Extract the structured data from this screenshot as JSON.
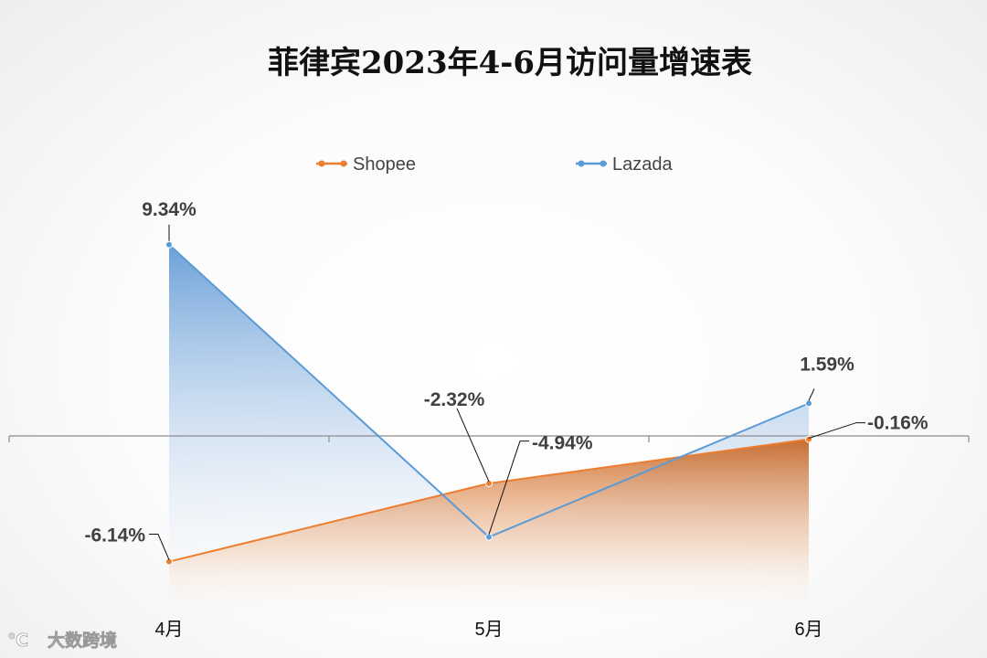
{
  "chart_data": {
    "type": "line",
    "title": "菲律宾2023年4-6月访问量增速表",
    "categories": [
      "4月",
      "5月",
      "6月"
    ],
    "series": [
      {
        "name": "Shopee",
        "color": "#ed7d31",
        "values": [
          -6.14,
          -2.32,
          -0.16
        ],
        "labels": [
          "-6.14%",
          "-2.32%",
          "-0.16%"
        ]
      },
      {
        "name": "Lazada",
        "color": "#5b9bd5",
        "values": [
          9.34,
          -4.94,
          1.59
        ],
        "labels": [
          "9.34%",
          "-4.94%",
          "1.59%"
        ]
      }
    ],
    "ylim": [
      -9,
      12
    ],
    "grid": false,
    "legend": "top-center"
  },
  "watermark": "大数跨境"
}
